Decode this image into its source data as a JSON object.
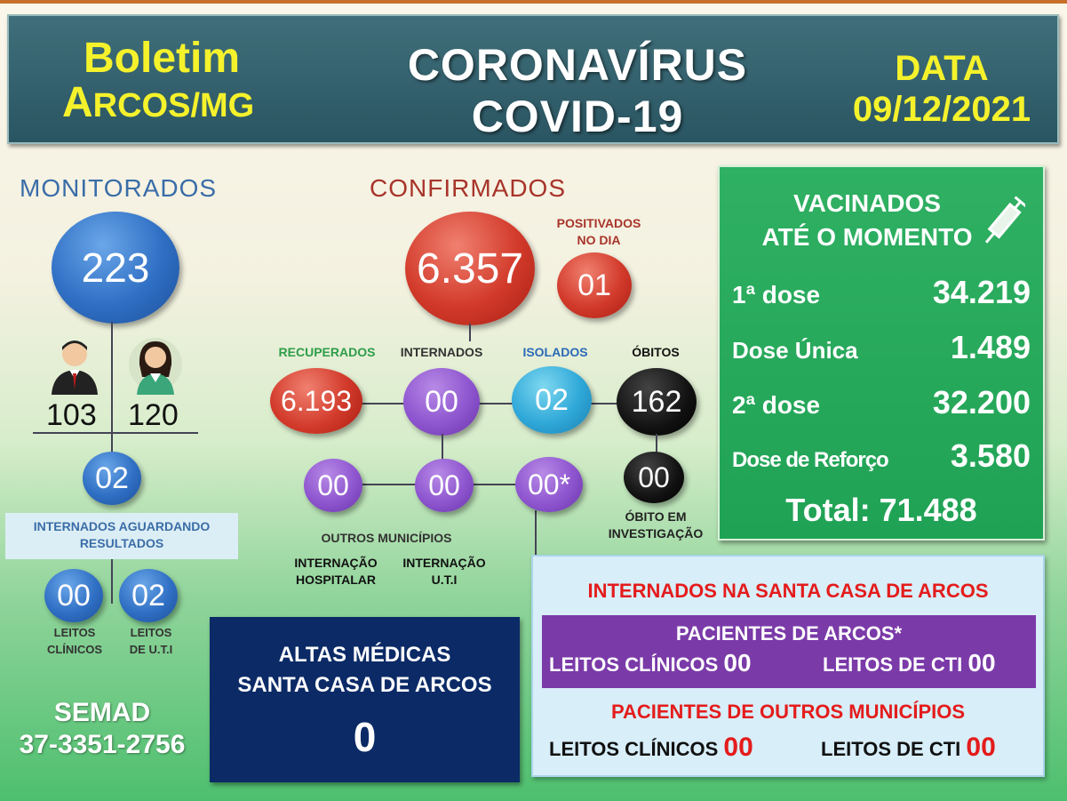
{
  "header": {
    "left_line1": "Boletim",
    "left_line2_A": "A",
    "left_line2_rest": "RCOS/MG",
    "title_line1": "CORONAVÍRUS",
    "title_line2": "COVID-19",
    "date_label": "DATA",
    "date_value": "09/12/2021"
  },
  "monitorados": {
    "title": "MONITORADOS",
    "total": "223",
    "men": "103",
    "women": "120",
    "internados_aguardando": "02",
    "internados_label": "INTERNADOS AGUARDANDO RESULTADOS",
    "leitos_clinicos": "00",
    "leitos_clinicos_label_1": "LEITOS",
    "leitos_clinicos_label_2": "CLÍNICOS",
    "leitos_uti": "02",
    "leitos_uti_label_1": "LEITOS",
    "leitos_uti_label_2": "DE  U.T.I"
  },
  "semad": {
    "label": "SEMAD",
    "phone": "37-3351-2756"
  },
  "confirmados": {
    "title": "CONFIRMADOS",
    "total": "6.357",
    "positivados_label_1": "POSITIVADOS",
    "positivados_label_2": "NO DIA",
    "positivados": "01",
    "recuperados_label": "RECUPERADOS",
    "recuperados": "6.193",
    "internados_label": "INTERNADOS",
    "internados": "00",
    "isolados_label": "ISOLADOS",
    "isolados": "02",
    "obitos_label": "ÓBITOS",
    "obitos": "162",
    "obito_investigacao": "00",
    "obito_investigacao_label_1": "ÓBITO EM",
    "obito_investigacao_label_2": "INVESTIGAÇÃO",
    "outros_municipios": "00",
    "internacao_hospitalar": "00",
    "internacao_uti": "00*",
    "outros_label": "OUTROS MUNICÍPIOS",
    "int_hosp_label_1": "INTERNAÇÃO",
    "int_hosp_label_2": "HOSPITALAR",
    "int_uti_label_1": "INTERNAÇÃO",
    "int_uti_label_2": "U.T.I"
  },
  "vacinados": {
    "title_1": "VACINADOS",
    "title_2": "ATÉ O MOMENTO",
    "dose1_label": "1ª dose",
    "dose1": "34.219",
    "unica_label": "Dose Única",
    "unica": "1.489",
    "dose2_label": "2ª dose",
    "dose2": "32.200",
    "reforco_label": "Dose de Reforço",
    "reforco": "3.580",
    "total": "Total: 71.488"
  },
  "altas": {
    "line1": "ALTAS MÉDICAS",
    "line2": "SANTA CASA DE ARCOS",
    "value": "0"
  },
  "santa_casa": {
    "title": "INTERNADOS NA SANTA CASA DE ARCOS",
    "arcos_title": "PACIENTES DE ARCOS*",
    "leitos_clinicos_label": "LEITOS CLÍNICOS",
    "arcos_clinicos": "00",
    "leitos_cti_label": "LEITOS DE CTI",
    "arcos_cti": "00",
    "outros_title": "PACIENTES DE OUTROS MUNICÍPIOS",
    "outros_clinicos": "00",
    "outros_cti": "00"
  },
  "colors": {
    "header_bg": "#2a5562",
    "header_yellow": "#f5f22c",
    "vaccine_green": "#20a255",
    "altas_navy": "#0b2a66",
    "alert_red": "#e41c1c"
  }
}
